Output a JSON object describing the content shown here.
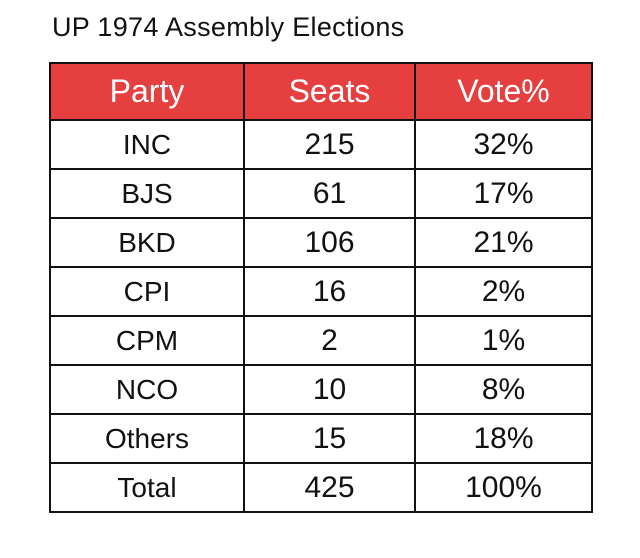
{
  "title": "UP 1974 Assembly Elections",
  "colors": {
    "header_background": "#e53f3f",
    "header_text": "#ffffff",
    "border": "#111111"
  },
  "chart_data": {
    "type": "table",
    "title": "UP 1974 Assembly Elections",
    "columns": [
      "Party",
      "Seats",
      "Vote%"
    ],
    "rows": [
      {
        "party": "INC",
        "seats": "215",
        "vote": "32%"
      },
      {
        "party": "BJS",
        "seats": "61",
        "vote": "17%"
      },
      {
        "party": "BKD",
        "seats": "106",
        "vote": "21%"
      },
      {
        "party": "CPI",
        "seats": "16",
        "vote": "2%"
      },
      {
        "party": "CPM",
        "seats": "2",
        "vote": "1%"
      },
      {
        "party": "NCO",
        "seats": "10",
        "vote": "8%"
      },
      {
        "party": "Others",
        "seats": "15",
        "vote": "18%"
      },
      {
        "party": "Total",
        "seats": "425",
        "vote": "100%"
      }
    ]
  }
}
